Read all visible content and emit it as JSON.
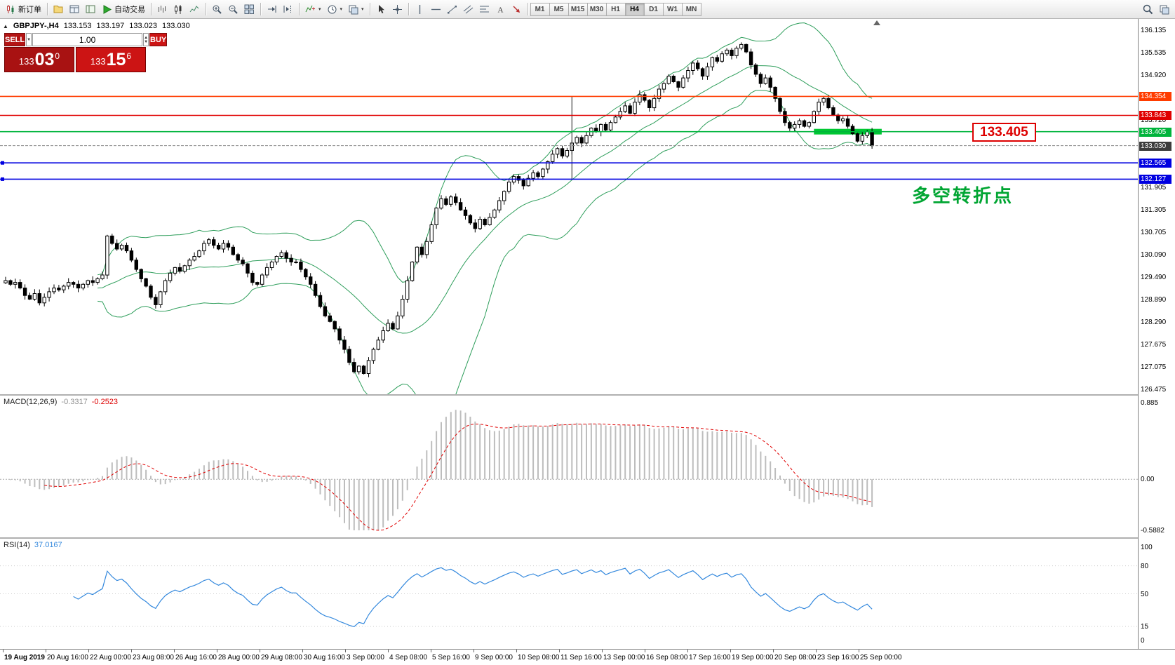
{
  "toolbar": {
    "groups": [
      {
        "items": [
          {
            "name": "new-order-button",
            "icon": "newchart",
            "label": "新订单"
          }
        ]
      },
      {
        "items": [
          {
            "name": "profiles-icon",
            "icon": "folder"
          },
          {
            "name": "market-watch-icon",
            "icon": "watch"
          },
          {
            "name": "navigator-icon",
            "icon": "nav"
          },
          {
            "name": "auto-trading-button",
            "icon": "play",
            "label": "自动交易"
          }
        ]
      },
      {
        "items": [
          {
            "name": "bar-chart-icon",
            "icon": "bars"
          },
          {
            "name": "candlestick-chart-icon",
            "icon": "candle"
          },
          {
            "name": "line-chart-icon",
            "icon": "linechart"
          }
        ]
      },
      {
        "items": [
          {
            "name": "zoom-in-icon",
            "icon": "zoomin"
          },
          {
            "name": "zoom-out-icon",
            "icon": "zoomout"
          },
          {
            "name": "tile-windows-icon",
            "icon": "tile"
          }
        ]
      },
      {
        "items": [
          {
            "name": "auto-scroll-icon",
            "icon": "autoscroll"
          },
          {
            "name": "chart-shift-icon",
            "icon": "shift"
          }
        ]
      },
      {
        "items": [
          {
            "name": "indicators-icon",
            "icon": "indicator",
            "caret": true
          },
          {
            "name": "periods-icon",
            "icon": "clock",
            "caret": true
          },
          {
            "name": "templates-icon",
            "icon": "template",
            "caret": true
          }
        ]
      },
      {
        "items": [
          {
            "name": "cursor-icon",
            "icon": "cursor"
          },
          {
            "name": "crosshair-icon",
            "icon": "cross"
          }
        ]
      },
      {
        "items": [
          {
            "name": "vertical-line-icon",
            "icon": "vline"
          },
          {
            "name": "horizontal-line-icon",
            "icon": "hline"
          },
          {
            "name": "trendline-icon",
            "icon": "trend"
          },
          {
            "name": "channel-icon",
            "icon": "channel"
          },
          {
            "name": "fibonacci-icon",
            "icon": "fib"
          },
          {
            "name": "text-icon",
            "icon": "text"
          },
          {
            "name": "arrows-icon",
            "icon": "arrow"
          }
        ]
      }
    ],
    "timeframes": [
      "M1",
      "M5",
      "M15",
      "M30",
      "H1",
      "H4",
      "D1",
      "W1",
      "MN"
    ],
    "active_timeframe": "H4",
    "right_items": [
      {
        "name": "search-icon",
        "icon": "search"
      },
      {
        "name": "toolbar-overflow-icon",
        "icon": "template"
      }
    ]
  },
  "symbol_info": {
    "symbol": "GBPJPY-,H4",
    "open": "133.153",
    "high": "133.197",
    "low": "133.023",
    "close": "133.030"
  },
  "trade_panel": {
    "sell_label": "SELL",
    "buy_label": "BUY",
    "volume": "1.00",
    "bid": {
      "prefix": "133",
      "main": "03",
      "sup": "0"
    },
    "ask": {
      "prefix": "133",
      "main": "15",
      "sup": "6"
    }
  },
  "annotations": {
    "price_callout": "133.405",
    "note": "多空转折点"
  },
  "macd_info": {
    "label": "MACD(12,26,9)",
    "value_main": "-0.3317",
    "value_signal": "-0.2523"
  },
  "rsi_info": {
    "label": "RSI(14)",
    "value": "37.0167"
  },
  "price_axis": {
    "plain": [
      {
        "label": "136.135",
        "value": 136.135
      },
      {
        "label": "135.535",
        "value": 135.535
      },
      {
        "label": "134.920",
        "value": 134.92
      },
      {
        "label": "133.720",
        "value": 133.72
      },
      {
        "label": "131.905",
        "value": 131.905
      },
      {
        "label": "131.305",
        "value": 131.305
      },
      {
        "label": "130.705",
        "value": 130.705
      },
      {
        "label": "130.090",
        "value": 130.09
      },
      {
        "label": "129.490",
        "value": 129.49
      },
      {
        "label": "128.890",
        "value": 128.89
      },
      {
        "label": "128.290",
        "value": 128.29
      },
      {
        "label": "127.675",
        "value": 127.675
      },
      {
        "label": "127.075",
        "value": 127.075
      },
      {
        "label": "126.475",
        "value": 126.475
      }
    ],
    "badges": [
      {
        "label": "134.354",
        "value": 134.354,
        "color": "#ff3c00"
      },
      {
        "label": "133.843",
        "value": 133.843,
        "color": "#e00000"
      },
      {
        "label": "133.405",
        "value": 133.405,
        "color": "#00b43c"
      },
      {
        "label": "133.030",
        "value": 133.03,
        "color": "#3c3c3c"
      },
      {
        "label": "132.565",
        "value": 132.565,
        "color": "#0000e0"
      },
      {
        "label": "132.127",
        "value": 132.127,
        "color": "#0000e0"
      }
    ]
  },
  "macd_axis": [
    {
      "label": "0.885",
      "value": 0.885
    },
    {
      "label": "0.00",
      "value": 0
    },
    {
      "label": "-0.5882",
      "value": -0.5882
    }
  ],
  "rsi_axis": [
    {
      "label": "100",
      "value": 100
    },
    {
      "label": "80",
      "value": 80
    },
    {
      "label": "50",
      "value": 50
    },
    {
      "label": "15",
      "value": 15
    },
    {
      "label": "0",
      "value": 0
    }
  ],
  "time_axis": [
    "19 Aug 2019",
    "20 Aug 16:00",
    "22 Aug 00:00",
    "23 Aug 08:00",
    "26 Aug 16:00",
    "28 Aug 00:00",
    "29 Aug 08:00",
    "30 Aug 16:00",
    "3 Sep 00:00",
    "4 Sep 08:00",
    "5 Sep 16:00",
    "9 Sep 00:00",
    "10 Sep 08:00",
    "11 Sep 16:00",
    "13 Sep 00:00",
    "16 Sep 08:00",
    "17 Sep 16:00",
    "19 Sep 00:00",
    "20 Sep 08:00",
    "23 Sep 16:00",
    "25 Sep 00:00"
  ],
  "chart_data": {
    "type": "candlestick",
    "symbol": "GBPJPY-",
    "timeframe": "H4",
    "current_ohlc": {
      "open": 133.153,
      "high": 133.197,
      "low": 133.023,
      "close": 133.03
    },
    "price_axis_min": 126.475,
    "price_axis_max": 136.135,
    "closes": [
      129.4,
      129.3,
      129.35,
      129.2,
      129.0,
      128.9,
      129.05,
      128.8,
      128.95,
      129.1,
      129.2,
      129.15,
      129.25,
      129.35,
      129.3,
      129.2,
      129.3,
      129.4,
      129.35,
      129.45,
      129.55,
      130.6,
      130.4,
      130.25,
      130.35,
      130.2,
      129.95,
      129.7,
      129.45,
      129.25,
      128.95,
      128.75,
      129.1,
      129.4,
      129.6,
      129.75,
      129.65,
      129.8,
      129.95,
      130.05,
      130.2,
      130.4,
      130.5,
      130.35,
      130.25,
      130.4,
      130.3,
      130.1,
      129.95,
      129.85,
      129.6,
      129.35,
      129.3,
      129.55,
      129.75,
      129.9,
      130.05,
      130.15,
      130.0,
      129.9,
      129.9,
      129.7,
      129.5,
      129.3,
      129.0,
      128.7,
      128.45,
      128.3,
      128.1,
      127.8,
      127.55,
      127.2,
      126.95,
      127.1,
      126.9,
      127.25,
      127.55,
      127.8,
      128.05,
      128.25,
      128.1,
      128.45,
      128.9,
      129.4,
      129.9,
      130.3,
      130.1,
      130.45,
      130.9,
      131.35,
      131.6,
      131.45,
      131.65,
      131.5,
      131.3,
      131.15,
      130.95,
      130.8,
      131.05,
      130.9,
      131.1,
      131.3,
      131.55,
      131.8,
      132.05,
      132.2,
      132.1,
      131.95,
      132.15,
      132.3,
      132.2,
      132.4,
      132.6,
      132.8,
      132.95,
      132.75,
      132.9,
      133.1,
      133.25,
      133.1,
      133.3,
      133.5,
      133.4,
      133.6,
      133.45,
      133.65,
      133.8,
      133.95,
      134.1,
      133.9,
      134.2,
      134.4,
      134.25,
      134.05,
      134.3,
      134.55,
      134.7,
      134.9,
      134.75,
      134.6,
      134.85,
      135.05,
      135.25,
      135.1,
      134.9,
      135.15,
      135.4,
      135.3,
      135.5,
      135.6,
      135.45,
      135.65,
      135.75,
      135.55,
      135.2,
      134.95,
      134.7,
      134.85,
      134.6,
      134.3,
      133.95,
      133.65,
      133.5,
      133.6,
      133.7,
      133.55,
      133.65,
      133.95,
      134.2,
      134.3,
      134.05,
      133.85,
      133.7,
      133.75,
      133.55,
      133.35,
      133.15,
      133.3,
      133.4,
      133.03
    ],
    "indicators": {
      "bollinger": {
        "period": 20,
        "deviation": 2,
        "color": "#2e9e5b"
      },
      "macd": {
        "fast": 12,
        "slow": 26,
        "signal": 9,
        "current_main": -0.3317,
        "current_signal": -0.2523,
        "axis_max": 0.885,
        "axis_min": -0.5882,
        "hist_color": "#bdbdbd",
        "signal_color": "#e00000"
      },
      "rsi": {
        "period": 14,
        "current": 37.0167,
        "levels": [
          80,
          50,
          15
        ],
        "color": "#3388dd"
      }
    },
    "hlines": [
      {
        "price": 134.354,
        "color": "#ff3c00"
      },
      {
        "price": 133.843,
        "color": "#e00000"
      },
      {
        "price": 133.405,
        "color": "#00b43c"
      },
      {
        "price": 132.565,
        "color": "#0000e0"
      },
      {
        "price": 132.127,
        "color": "#0000e0"
      }
    ],
    "bid_line": {
      "price": 133.03,
      "color": "#888888"
    },
    "highlight_zone": {
      "price": 133.405,
      "start_index": 167,
      "end_index": 181,
      "color": "#00c832"
    },
    "vertical_line": {
      "index": 117,
      "from_price": 134.354,
      "to_price": 132.127,
      "color": "#404040"
    }
  }
}
